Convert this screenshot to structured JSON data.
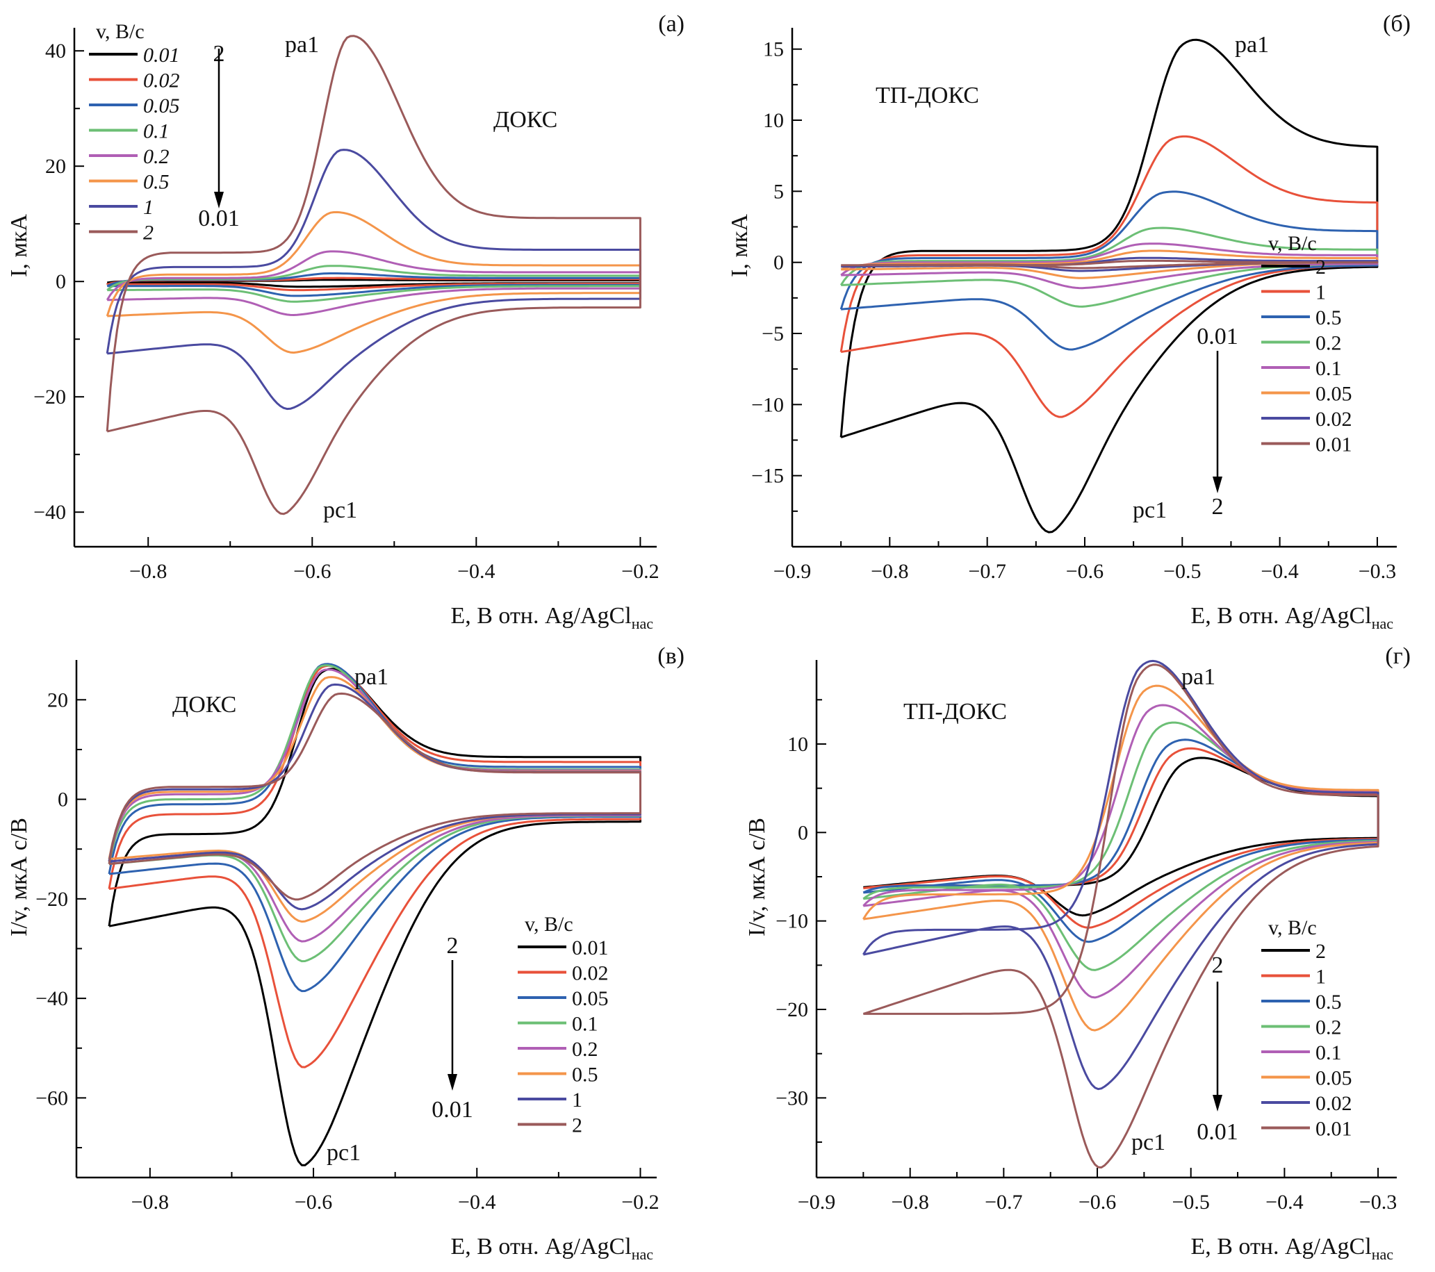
{
  "chart_data": [
    {
      "id": "a",
      "type": "line",
      "panel_label": "(а)",
      "title": "ДОКС",
      "ylabel": "I, мкА",
      "xlabel": "E, В отн. Ag/AgCl",
      "xlabel_sub": "нас",
      "xlim": [
        -0.89,
        -0.18
      ],
      "ylim": [
        -46,
        44
      ],
      "xticks": [
        -0.8,
        -0.6,
        -0.4,
        -0.2
      ],
      "xtick_labels": [
        "−0.8",
        "−0.6",
        "−0.4",
        "−0.2"
      ],
      "xminor": [
        -0.7,
        -0.5,
        -0.3
      ],
      "yticks": [
        -40,
        -20,
        0,
        20,
        40
      ],
      "ytick_labels": [
        "−40",
        "−20",
        "0",
        "20",
        "40"
      ],
      "yminor": [
        -30,
        -10,
        10,
        30
      ],
      "legend_title": "v, В/с",
      "legend_italic": true,
      "legend_position": "top-left",
      "peak_labels": {
        "anodic": "pa1",
        "cathodic": "pc1"
      },
      "arrow": {
        "from": "2",
        "to": "0.01"
      },
      "E_start": -0.85,
      "E_end": -0.2,
      "E_gap": -0.3,
      "series": [
        {
          "name": "0.01",
          "color": "#000000",
          "Epa": -0.58,
          "Ipa": 0.3,
          "Epc": -0.62,
          "Ipc": -0.9,
          "base_a": 0.1,
          "base_c": -0.2,
          "end_a": 0.2,
          "end_c": -0.3
        },
        {
          "name": "0.02",
          "color": "#e8513a",
          "Epa": -0.58,
          "Ipa": 0.6,
          "Epc": -0.62,
          "Ipc": -1.5,
          "base_a": 0.2,
          "base_c": -0.5,
          "end_a": 0.4,
          "end_c": -0.4
        },
        {
          "name": "0.05",
          "color": "#2e62b0",
          "Epa": -0.58,
          "Ipa": 1.4,
          "Epc": -0.62,
          "Ipc": -2.5,
          "base_a": 0.3,
          "base_c": -0.8,
          "end_a": 0.6,
          "end_c": -0.6
        },
        {
          "name": "0.1",
          "color": "#6cbf75",
          "Epa": -0.58,
          "Ipa": 2.7,
          "Epc": -0.62,
          "Ipc": -3.5,
          "base_a": 0.4,
          "base_c": -1.5,
          "end_a": 1.0,
          "end_c": -0.8
        },
        {
          "name": "0.2",
          "color": "#b05fb5",
          "Epa": -0.58,
          "Ipa": 5.2,
          "Epc": -0.62,
          "Ipc": -5.8,
          "base_a": 0.6,
          "base_c": -3.2,
          "end_a": 1.6,
          "end_c": -1.2
        },
        {
          "name": "0.5",
          "color": "#f4954a",
          "Epa": -0.575,
          "Ipa": 12.0,
          "Epc": -0.62,
          "Ipc": -12.3,
          "base_a": 1.2,
          "base_c": -6.0,
          "end_a": 2.8,
          "end_c": -2.0
        },
        {
          "name": "1",
          "color": "#4a4aa0",
          "Epa": -0.565,
          "Ipa": 22.8,
          "Epc": -0.625,
          "Ipc": -22.0,
          "base_a": 2.5,
          "base_c": -12.5,
          "end_a": 5.5,
          "end_c": -3.0
        },
        {
          "name": "2",
          "color": "#9a5a5a",
          "Epa": -0.555,
          "Ipa": 42.5,
          "Epc": -0.63,
          "Ipc": -40.0,
          "base_a": 5.0,
          "base_c": -26.0,
          "end_a": 11.0,
          "end_c": -4.5
        }
      ]
    },
    {
      "id": "b",
      "type": "line",
      "panel_label": "(б)",
      "title": "ТП-ДОКС",
      "ylabel": "I, мкА",
      "xlabel": "E, В отн. Ag/AgCl",
      "xlabel_sub": "нас",
      "xlim": [
        -0.9,
        -0.28
      ],
      "ylim": [
        -20,
        16.5
      ],
      "xticks": [
        -0.9,
        -0.8,
        -0.7,
        -0.6,
        -0.5,
        -0.4,
        -0.3
      ],
      "xtick_labels": [
        "−0.9",
        "−0.8",
        "−0.7",
        "−0.6",
        "−0.5",
        "−0.4",
        "−0.3"
      ],
      "xminor": [
        -0.85,
        -0.75,
        -0.65,
        -0.55,
        -0.45,
        -0.35
      ],
      "yticks": [
        -15,
        -10,
        -5,
        0,
        5,
        10,
        15
      ],
      "ytick_labels": [
        "−15",
        "−10",
        "−5",
        "0",
        "5",
        "10",
        "15"
      ],
      "yminor": [
        -17.5,
        -12.5,
        -7.5,
        -2.5,
        2.5,
        7.5,
        12.5
      ],
      "legend_title": "v, В/с",
      "legend_italic": false,
      "legend_position": "bottom-right",
      "peak_labels": {
        "anodic": "pa1",
        "cathodic": "pc1"
      },
      "arrow": {
        "from": "0.01",
        "to": "2"
      },
      "E_start": -0.85,
      "E_end": -0.3,
      "E_gap": -0.35,
      "series": [
        {
          "name": "2",
          "color": "#000000",
          "Epa": -0.5,
          "Ipa": 15.3,
          "Epc": -0.63,
          "Ipc": -18.8,
          "base_a": 0.8,
          "base_c": -12.3,
          "end_a": 8.1,
          "end_c": -0.3
        },
        {
          "name": "1",
          "color": "#e8513a",
          "Epa": -0.51,
          "Ipa": 8.7,
          "Epc": -0.62,
          "Ipc": -10.8,
          "base_a": 0.5,
          "base_c": -6.3,
          "end_a": 4.2,
          "end_c": -0.2
        },
        {
          "name": "0.5",
          "color": "#2e62b0",
          "Epa": -0.52,
          "Ipa": 4.9,
          "Epc": -0.61,
          "Ipc": -6.1,
          "base_a": 0.3,
          "base_c": -3.3,
          "end_a": 2.2,
          "end_c": -0.2
        },
        {
          "name": "0.2",
          "color": "#6cbf75",
          "Epa": -0.53,
          "Ipa": 2.4,
          "Epc": -0.6,
          "Ipc": -3.1,
          "base_a": 0.1,
          "base_c": -1.6,
          "end_a": 0.9,
          "end_c": -0.1
        },
        {
          "name": "0.1",
          "color": "#b05fb5",
          "Epa": -0.54,
          "Ipa": 1.3,
          "Epc": -0.6,
          "Ipc": -1.8,
          "base_a": 0.0,
          "base_c": -0.9,
          "end_a": 0.5,
          "end_c": -0.1
        },
        {
          "name": "0.05",
          "color": "#f4954a",
          "Epa": -0.54,
          "Ipa": 0.8,
          "Epc": -0.6,
          "Ipc": -1.1,
          "base_a": -0.1,
          "base_c": -0.5,
          "end_a": 0.3,
          "end_c": 0.0
        },
        {
          "name": "0.02",
          "color": "#4a4aa0",
          "Epa": -0.55,
          "Ipa": 0.3,
          "Epc": -0.6,
          "Ipc": -0.6,
          "base_a": -0.2,
          "base_c": -0.3,
          "end_a": 0.1,
          "end_c": 0.0
        },
        {
          "name": "0.01",
          "color": "#9a5a5a",
          "Epa": -0.55,
          "Ipa": 0.1,
          "Epc": -0.6,
          "Ipc": -0.4,
          "base_a": -0.2,
          "base_c": -0.2,
          "end_a": 0.0,
          "end_c": 0.0
        }
      ]
    },
    {
      "id": "c",
      "type": "line",
      "panel_label": "(в)",
      "title": "ДОКС",
      "ylabel": "I/v, мкА с/В",
      "xlabel": "E, В отн. Ag/AgCl",
      "xlabel_sub": "нас",
      "xlim": [
        -0.89,
        -0.18
      ],
      "ylim": [
        -76,
        28
      ],
      "xticks": [
        -0.8,
        -0.6,
        -0.4,
        -0.2
      ],
      "xtick_labels": [
        "−0.8",
        "−0.6",
        "−0.4",
        "−0.2"
      ],
      "xminor": [
        -0.7,
        -0.5,
        -0.3
      ],
      "yticks": [
        -60,
        -40,
        -20,
        0,
        20
      ],
      "ytick_labels": [
        "−60",
        "−40",
        "−20",
        "0",
        "20"
      ],
      "yminor": [
        -70,
        -50,
        -30,
        -10,
        10
      ],
      "legend_title": "v, В/с",
      "legend_italic": false,
      "legend_position": "bottom-right",
      "peak_labels": {
        "anodic": "pa1",
        "cathodic": "pc1"
      },
      "arrow": {
        "from": "2",
        "to": "0.01"
      },
      "E_start": -0.85,
      "E_end": -0.2,
      "E_gap": -0.3,
      "series": [
        {
          "name": "0.01",
          "color": "#000000",
          "Epa": -0.59,
          "Ipa": 25.5,
          "Epc": -0.61,
          "Ipc": -73.5,
          "base_a": -7.0,
          "base_c": -25.5,
          "end_a": 8.5,
          "end_c": -4.5
        },
        {
          "name": "0.02",
          "color": "#e8513a",
          "Epa": -0.59,
          "Ipa": 26.5,
          "Epc": -0.61,
          "Ipc": -53.8,
          "base_a": -3.0,
          "base_c": -18.0,
          "end_a": 7.5,
          "end_c": -4.0
        },
        {
          "name": "0.05",
          "color": "#2e62b0",
          "Epa": -0.59,
          "Ipa": 27.0,
          "Epc": -0.61,
          "Ipc": -38.5,
          "base_a": -1.0,
          "base_c": -15.0,
          "end_a": 6.5,
          "end_c": -3.5
        },
        {
          "name": "0.1",
          "color": "#6cbf75",
          "Epa": -0.59,
          "Ipa": 26.8,
          "Epc": -0.61,
          "Ipc": -32.5,
          "base_a": 0.0,
          "base_c": -13.0,
          "end_a": 6.0,
          "end_c": -3.3
        },
        {
          "name": "0.2",
          "color": "#b05fb5",
          "Epa": -0.587,
          "Ipa": 26.0,
          "Epc": -0.61,
          "Ipc": -28.5,
          "base_a": 1.0,
          "base_c": -12.5,
          "end_a": 5.8,
          "end_c": -3.2
        },
        {
          "name": "0.5",
          "color": "#f4954a",
          "Epa": -0.583,
          "Ipa": 24.5,
          "Epc": -0.61,
          "Ipc": -24.5,
          "base_a": 1.5,
          "base_c": -12.0,
          "end_a": 5.6,
          "end_c": -3.0
        },
        {
          "name": "1",
          "color": "#4a4aa0",
          "Epa": -0.577,
          "Ipa": 23.0,
          "Epc": -0.61,
          "Ipc": -22.0,
          "base_a": 2.0,
          "base_c": -12.5,
          "end_a": 5.5,
          "end_c": -3.0
        },
        {
          "name": "2",
          "color": "#9a5a5a",
          "Epa": -0.57,
          "Ipa": 21.2,
          "Epc": -0.615,
          "Ipc": -20.0,
          "base_a": 2.5,
          "base_c": -13.0,
          "end_a": 5.4,
          "end_c": -2.8
        }
      ]
    },
    {
      "id": "d",
      "type": "line",
      "panel_label": "(г)",
      "title": "ТП-ДОКС",
      "ylabel": "I/v, мкА с/В",
      "xlabel": "E, В отн. Ag/AgCl",
      "xlabel_sub": "нас",
      "xlim": [
        -0.9,
        -0.28
      ],
      "ylim": [
        -39,
        19.5
      ],
      "xticks": [
        -0.9,
        -0.8,
        -0.7,
        -0.6,
        -0.5,
        -0.4,
        -0.3
      ],
      "xtick_labels": [
        "−0.9",
        "−0.8",
        "−0.7",
        "−0.6",
        "−0.5",
        "−0.4",
        "−0.3"
      ],
      "xminor": [
        -0.85,
        -0.75,
        -0.65,
        -0.55,
        -0.45,
        -0.35
      ],
      "yticks": [
        -30,
        -20,
        -10,
        0,
        10
      ],
      "ytick_labels": [
        "−30",
        "−20",
        "−10",
        "0",
        "10"
      ],
      "yminor": [
        -35,
        -25,
        -15,
        -5,
        5,
        15
      ],
      "legend_title": "v, В/с",
      "legend_italic": false,
      "legend_position": "bottom-right",
      "peak_labels": {
        "anodic": "pa1",
        "cathodic": "pc1"
      },
      "arrow": {
        "from": "2",
        "to": "0.01"
      },
      "E_start": -0.85,
      "E_end": -0.3,
      "E_gap": -0.35,
      "series": [
        {
          "name": "2",
          "color": "#000000",
          "Epa": -0.51,
          "Ipa": 7.7,
          "Epc": -0.61,
          "Ipc": -9.3,
          "base_a": -6.0,
          "base_c": -6.2,
          "end_a": 4.1,
          "end_c": -0.6
        },
        {
          "name": "1",
          "color": "#e8513a",
          "Epa": -0.52,
          "Ipa": 8.8,
          "Epc": -0.605,
          "Ipc": -10.7,
          "base_a": -6.0,
          "base_c": -6.3,
          "end_a": 4.3,
          "end_c": -0.7
        },
        {
          "name": "0.5",
          "color": "#2e62b0",
          "Epa": -0.525,
          "Ipa": 9.8,
          "Epc": -0.605,
          "Ipc": -12.3,
          "base_a": -6.0,
          "base_c": -6.8,
          "end_a": 4.5,
          "end_c": -0.8
        },
        {
          "name": "0.2",
          "color": "#6cbf75",
          "Epa": -0.535,
          "Ipa": 11.8,
          "Epc": -0.6,
          "Ipc": -15.5,
          "base_a": -6.2,
          "base_c": -7.5,
          "end_a": 4.6,
          "end_c": -0.9
        },
        {
          "name": "0.1",
          "color": "#b05fb5",
          "Epa": -0.545,
          "Ipa": 13.8,
          "Epc": -0.6,
          "Ipc": -18.6,
          "base_a": -6.5,
          "base_c": -8.3,
          "end_a": 4.7,
          "end_c": -1.0
        },
        {
          "name": "0.05",
          "color": "#f4954a",
          "Epa": -0.55,
          "Ipa": 16.0,
          "Epc": -0.6,
          "Ipc": -22.3,
          "base_a": -7.0,
          "base_c": -9.8,
          "end_a": 4.8,
          "end_c": -1.1
        },
        {
          "name": "0.02",
          "color": "#4a4aa0",
          "Epa": -0.555,
          "Ipa": 18.6,
          "Epc": -0.595,
          "Ipc": -28.9,
          "base_a": -11.0,
          "base_c": -13.8,
          "end_a": 4.5,
          "end_c": -1.2
        },
        {
          "name": "0.01",
          "color": "#9a5a5a",
          "Epa": -0.557,
          "Ipa": 17.4,
          "Epc": -0.593,
          "Ipc": -37.7,
          "base_a": -20.5,
          "base_c": -20.5,
          "end_a": 4.2,
          "end_c": -1.4
        }
      ]
    }
  ]
}
